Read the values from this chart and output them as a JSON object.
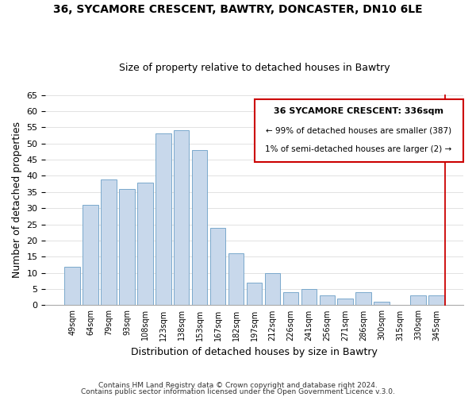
{
  "title": "36, SYCAMORE CRESCENT, BAWTRY, DONCASTER, DN10 6LE",
  "subtitle": "Size of property relative to detached houses in Bawtry",
  "xlabel": "Distribution of detached houses by size in Bawtry",
  "ylabel": "Number of detached properties",
  "bar_labels": [
    "49sqm",
    "64sqm",
    "79sqm",
    "93sqm",
    "108sqm",
    "123sqm",
    "138sqm",
    "153sqm",
    "167sqm",
    "182sqm",
    "197sqm",
    "212sqm",
    "226sqm",
    "241sqm",
    "256sqm",
    "271sqm",
    "286sqm",
    "300sqm",
    "315sqm",
    "330sqm",
    "345sqm"
  ],
  "bar_values": [
    12,
    31,
    39,
    36,
    38,
    53,
    54,
    48,
    24,
    16,
    7,
    10,
    4,
    5,
    3,
    2,
    4,
    1,
    0,
    3,
    3
  ],
  "bar_color": "#c8d8eb",
  "bar_edge_color": "#7aa8cc",
  "ylim": [
    0,
    65
  ],
  "yticks": [
    0,
    5,
    10,
    15,
    20,
    25,
    30,
    35,
    40,
    45,
    50,
    55,
    60,
    65
  ],
  "annotation_title": "36 SYCAMORE CRESCENT: 336sqm",
  "annotation_line1": "← 99% of detached houses are smaller (387)",
  "annotation_line2": "1% of semi-detached houses are larger (2) →",
  "annotation_box_color": "#ffffff",
  "annotation_box_edge": "#cc0000",
  "property_line_color": "#cc0000",
  "footer_line1": "Contains HM Land Registry data © Crown copyright and database right 2024.",
  "footer_line2": "Contains public sector information licensed under the Open Government Licence v.3.0.",
  "background_color": "#ffffff",
  "grid_color": "#dddddd"
}
